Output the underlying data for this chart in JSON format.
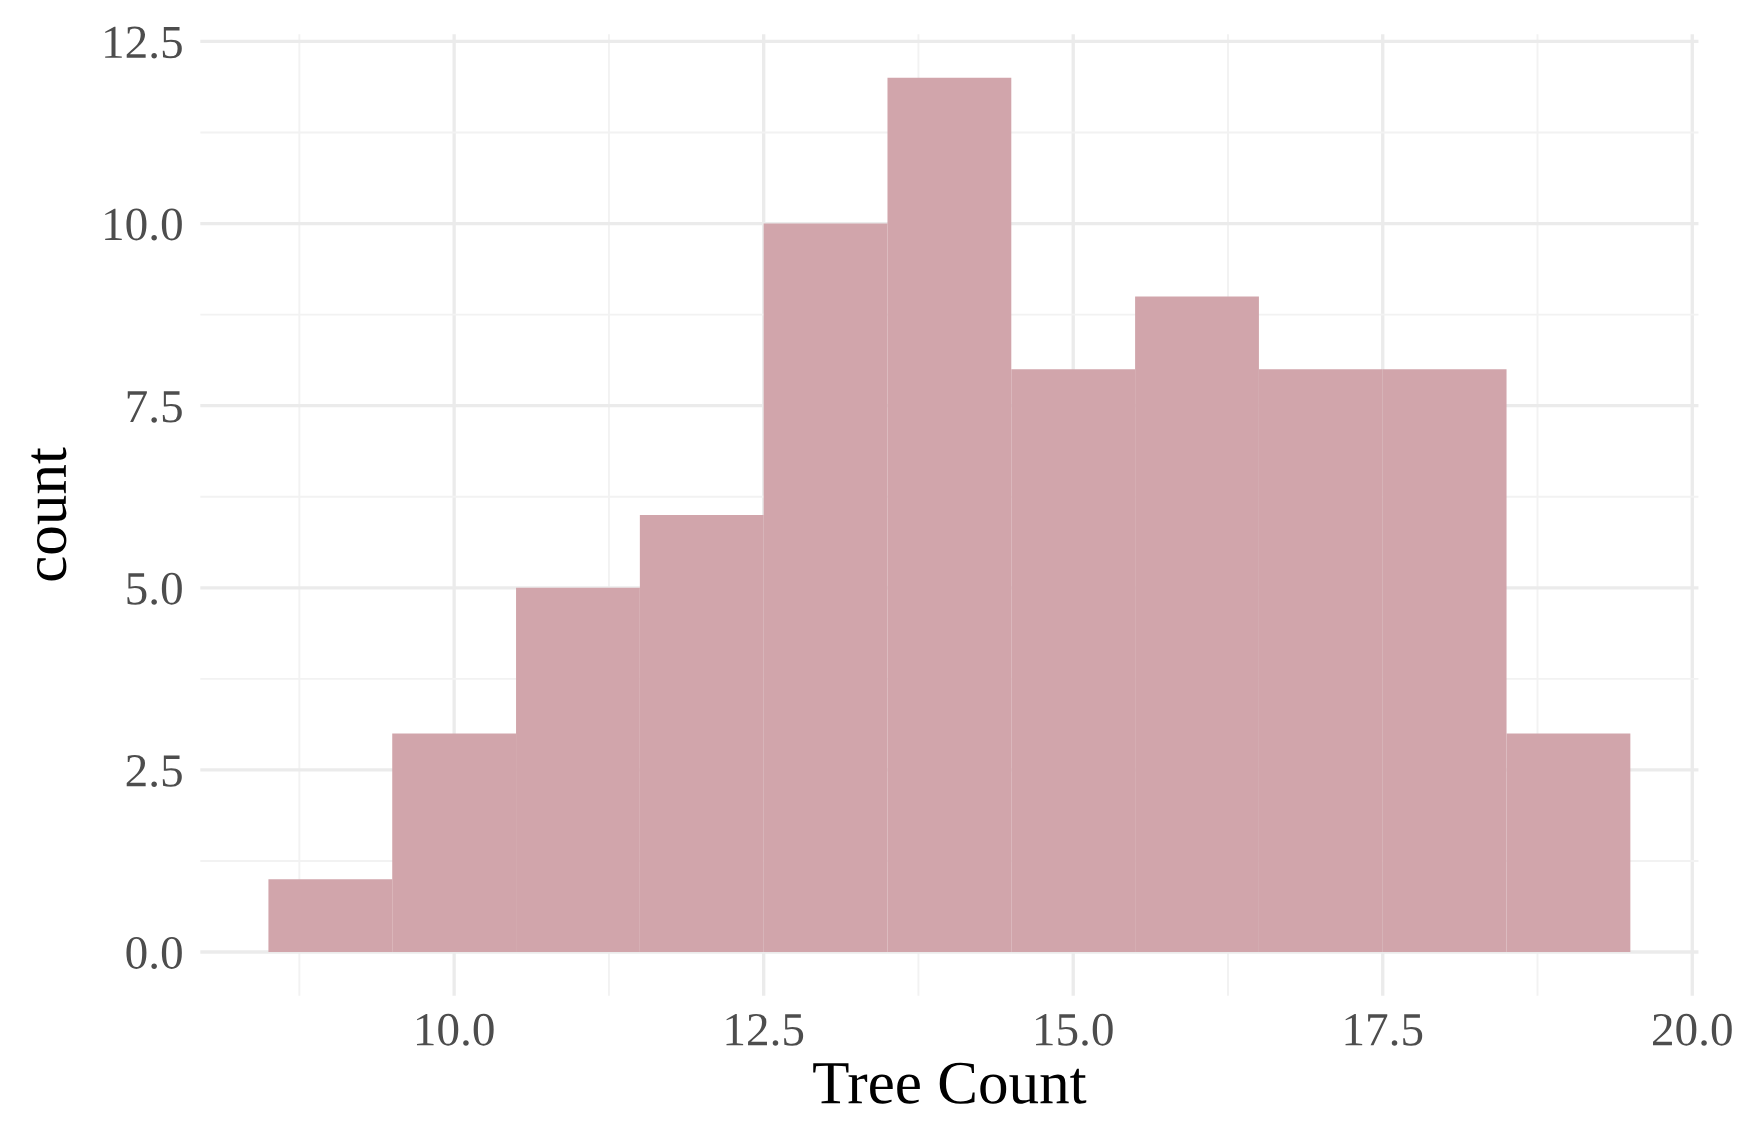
{
  "chart_data": {
    "type": "histogram",
    "xlabel": "Tree Count",
    "ylabel": "count",
    "bins": [
      8.5,
      9.5,
      10.5,
      11.5,
      12.5,
      13.5,
      14.5,
      15.5,
      16.5,
      17.5,
      18.5,
      19.5
    ],
    "values": [
      1,
      3,
      5,
      6,
      10,
      12,
      8,
      9,
      8,
      8,
      3
    ],
    "color": "#d1a5ab",
    "xlim": [
      7.95,
      20.05
    ],
    "xticks": [
      {
        "value": 10,
        "label": "10.0"
      },
      {
        "value": 12.5,
        "label": "12.5"
      },
      {
        "value": 15,
        "label": "15.0"
      },
      {
        "value": 17.5,
        "label": "17.5"
      },
      {
        "value": 20,
        "label": "20.0"
      }
    ],
    "ylim": [
      -0.6,
      12.6
    ],
    "yticks": [
      {
        "value": 0,
        "label": "0.0"
      },
      {
        "value": 2.5,
        "label": "2.5"
      },
      {
        "value": 5,
        "label": "5.0"
      },
      {
        "value": 7.5,
        "label": "7.5"
      },
      {
        "value": 10,
        "label": "10.0"
      },
      {
        "value": 12.5,
        "label": "12.5"
      }
    ],
    "grid": true
  }
}
